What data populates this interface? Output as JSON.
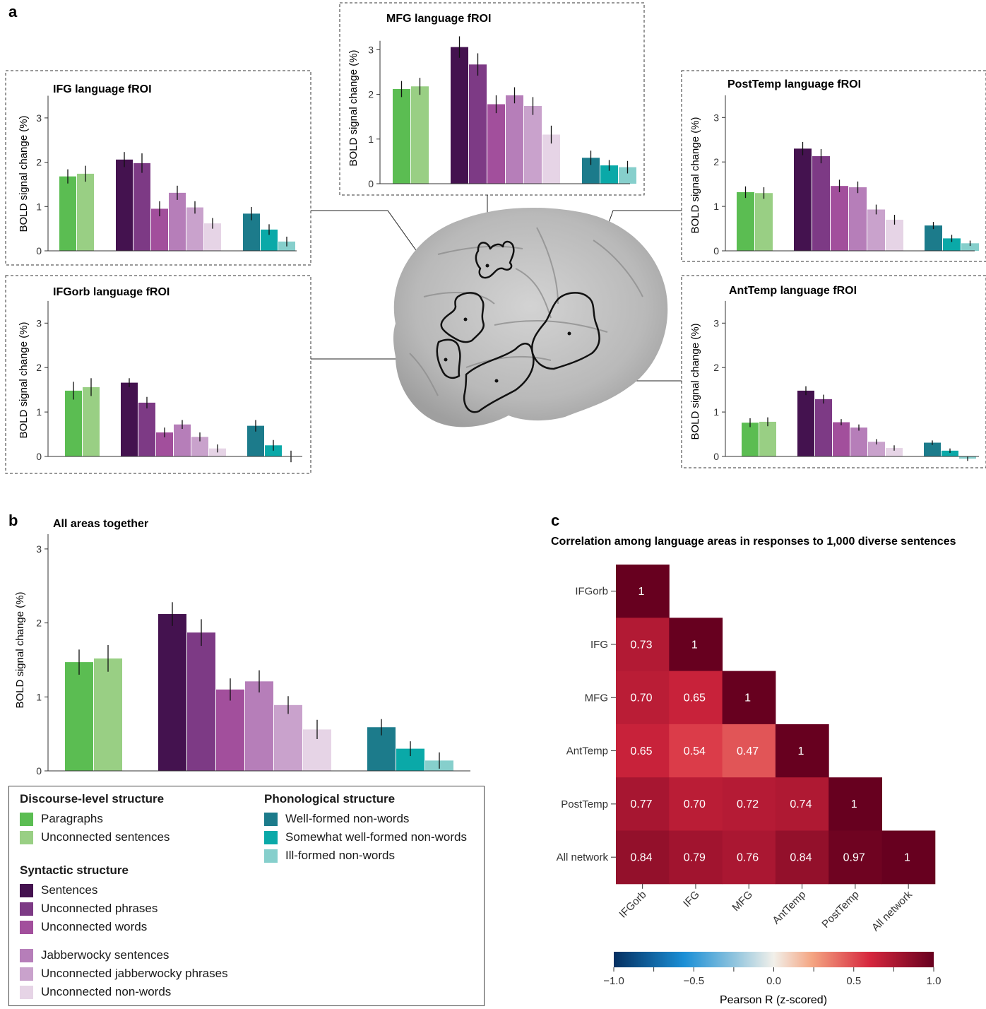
{
  "panel_labels": {
    "a": "a",
    "b": "b",
    "c": "c"
  },
  "conditions": [
    {
      "name": "Paragraphs",
      "color": "#5bbd52"
    },
    {
      "name": "Unconnected sentences",
      "color": "#99cf84"
    },
    {
      "name": "Sentences",
      "color": "#44124f"
    },
    {
      "name": "Unconnected phrases",
      "color": "#7d3a85"
    },
    {
      "name": "Unconnected words",
      "color": "#a24f9c"
    },
    {
      "name": "Jabberwocky sentences",
      "color": "#b67eb9"
    },
    {
      "name": "Unconnected jabberwocky phrases",
      "color": "#c9a2cc"
    },
    {
      "name": "Unconnected non-words",
      "color": "#e6d4e6"
    },
    {
      "name": "Well-formed non-words",
      "color": "#1c7b8b"
    },
    {
      "name": "Somewhat well-formed non-words",
      "color": "#0aa9a8"
    },
    {
      "name": "Ill-formed non-words",
      "color": "#86cfcc"
    }
  ],
  "legend": {
    "discourse": {
      "title": "Discourse-level structure",
      "items": [
        "Paragraphs",
        "Unconnected sentences"
      ]
    },
    "syntactic": {
      "title": "Syntactic structure",
      "items": [
        "Sentences",
        "Unconnected phrases",
        "Unconnected words"
      ],
      "items2": [
        "Jabberwocky sentences",
        "Unconnected jabberwocky phrases",
        "Unconnected non-words"
      ]
    },
    "phonological": {
      "title": "Phonological structure",
      "items": [
        "Well-formed non-words",
        "Somewhat well-formed non-words",
        "Ill-formed non-words"
      ]
    }
  },
  "chart_data": [
    {
      "type": "bar",
      "id": "IFG",
      "title": "IFG language fROI",
      "ylabel": "BOLD signal change (%)",
      "ylim": [
        0,
        3.5
      ],
      "yticks": [
        0,
        1,
        2,
        3
      ],
      "values": [
        1.68,
        1.74,
        2.06,
        1.98,
        0.95,
        1.31,
        0.98,
        0.62,
        0.84,
        0.48,
        0.21
      ],
      "errors": [
        0.16,
        0.18,
        0.17,
        0.22,
        0.17,
        0.16,
        0.14,
        0.12,
        0.15,
        0.12,
        0.11
      ]
    },
    {
      "type": "bar",
      "id": "MFG",
      "title": "MFG language fROI",
      "ylabel": "BOLD signal change (%)",
      "ylim": [
        0,
        3.2
      ],
      "yticks": [
        0,
        1,
        2,
        3
      ],
      "values": [
        2.12,
        2.18,
        3.06,
        2.67,
        1.78,
        1.98,
        1.74,
        1.1,
        0.58,
        0.41,
        0.37
      ],
      "errors": [
        0.18,
        0.19,
        0.24,
        0.25,
        0.2,
        0.18,
        0.2,
        0.2,
        0.16,
        0.12,
        0.14
      ]
    },
    {
      "type": "bar",
      "id": "PostTemp",
      "title": "PostTemp language fROI",
      "ylabel": "BOLD signal change (%)",
      "ylim": [
        0,
        3.5
      ],
      "yticks": [
        0,
        1,
        2,
        3
      ],
      "values": [
        1.32,
        1.3,
        2.3,
        2.13,
        1.46,
        1.43,
        0.93,
        0.7,
        0.57,
        0.28,
        0.17
      ],
      "errors": [
        0.13,
        0.13,
        0.15,
        0.16,
        0.14,
        0.13,
        0.11,
        0.11,
        0.08,
        0.08,
        0.06
      ]
    },
    {
      "type": "bar",
      "id": "IFGorb",
      "title": "IFGorb language fROI",
      "ylabel": "BOLD signal change (%)",
      "ylim": [
        0,
        3.5
      ],
      "yticks": [
        0,
        1,
        2,
        3
      ],
      "values": [
        1.48,
        1.56,
        1.66,
        1.21,
        0.54,
        0.72,
        0.44,
        0.18,
        0.69,
        0.25,
        0.0
      ],
      "errors": [
        0.2,
        0.2,
        0.1,
        0.13,
        0.11,
        0.1,
        0.1,
        0.09,
        0.13,
        0.12,
        0.13
      ]
    },
    {
      "type": "bar",
      "id": "AntTemp",
      "title": "AntTemp language fROI",
      "ylabel": "BOLD signal change (%)",
      "ylim": [
        0,
        3.5
      ],
      "yticks": [
        0,
        1,
        2,
        3
      ],
      "values": [
        0.76,
        0.78,
        1.48,
        1.29,
        0.77,
        0.65,
        0.33,
        0.19,
        0.31,
        0.13,
        -0.05
      ],
      "errors": [
        0.1,
        0.1,
        0.1,
        0.1,
        0.07,
        0.07,
        0.06,
        0.06,
        0.05,
        0.05,
        0.05
      ]
    },
    {
      "type": "bar",
      "id": "All",
      "title": "All areas together",
      "ylabel": "BOLD signal change (%)",
      "ylim": [
        0,
        3.2
      ],
      "yticks": [
        0,
        1,
        2,
        3
      ],
      "values": [
        1.47,
        1.52,
        2.12,
        1.87,
        1.1,
        1.21,
        0.89,
        0.56,
        0.59,
        0.3,
        0.14
      ],
      "errors": [
        0.17,
        0.18,
        0.16,
        0.18,
        0.15,
        0.15,
        0.12,
        0.13,
        0.11,
        0.1,
        0.11
      ]
    },
    {
      "type": "heatmap",
      "id": "correlation",
      "title": "Correlation among language areas in responses to 1,000 diverse sentences",
      "labels": [
        "IFGorb",
        "IFG",
        "MFG",
        "AntTemp",
        "PostTemp",
        "All network"
      ],
      "matrix": [
        [
          1,
          null,
          null,
          null,
          null,
          null
        ],
        [
          0.73,
          1,
          null,
          null,
          null,
          null
        ],
        [
          0.7,
          0.65,
          1,
          null,
          null,
          null
        ],
        [
          0.65,
          0.54,
          0.47,
          1,
          null,
          null
        ],
        [
          0.77,
          0.7,
          0.72,
          0.74,
          1,
          null
        ],
        [
          0.84,
          0.79,
          0.76,
          0.84,
          0.97,
          1
        ]
      ],
      "colorbar": {
        "ticks": [
          -1.0,
          -0.5,
          0.0,
          0.5,
          1.0
        ],
        "tick_labels": [
          "−1.0",
          "−0.5",
          "0.0",
          "0.5",
          "1.0"
        ],
        "label": "Pearson R (z-scored)"
      }
    }
  ]
}
